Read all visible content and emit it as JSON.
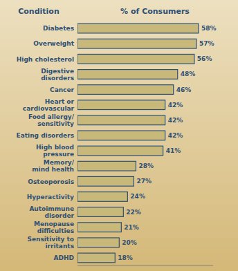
{
  "chart_data": {
    "type": "bar",
    "orientation": "horizontal",
    "x_label": "% of Consumers",
    "y_label": "Condition",
    "categories": [
      "ADHD",
      "Sensitivity to\nirritants",
      "Menopause\ndifficulties",
      "Autoimmune\ndisorder",
      "Hyperactivity",
      "Osteoporosis",
      "Memory/\nmind health",
      "High blood\npressure",
      "Eating disorders",
      "Food allergy/\nsensitivity",
      "Heart or\ncardiovascular",
      "Cancer",
      "Digestive\ndisorders",
      "High cholesterol",
      "Overweight",
      "Diabetes"
    ],
    "values": [
      18,
      20,
      21,
      22,
      24,
      27,
      28,
      41,
      42,
      42,
      42,
      46,
      48,
      56,
      57,
      58
    ],
    "value_labels": [
      "18%",
      "20%",
      "21%",
      "22%",
      "24%",
      "27%",
      "28%",
      "41%",
      "42%",
      "42%",
      "42%",
      "46%",
      "48%",
      "56%",
      "57%",
      "58%"
    ],
    "color": "#c8b87a",
    "xlim": [
      0,
      65
    ],
    "grid": false,
    "data_labels": true,
    "tick_labels": "y"
  }
}
